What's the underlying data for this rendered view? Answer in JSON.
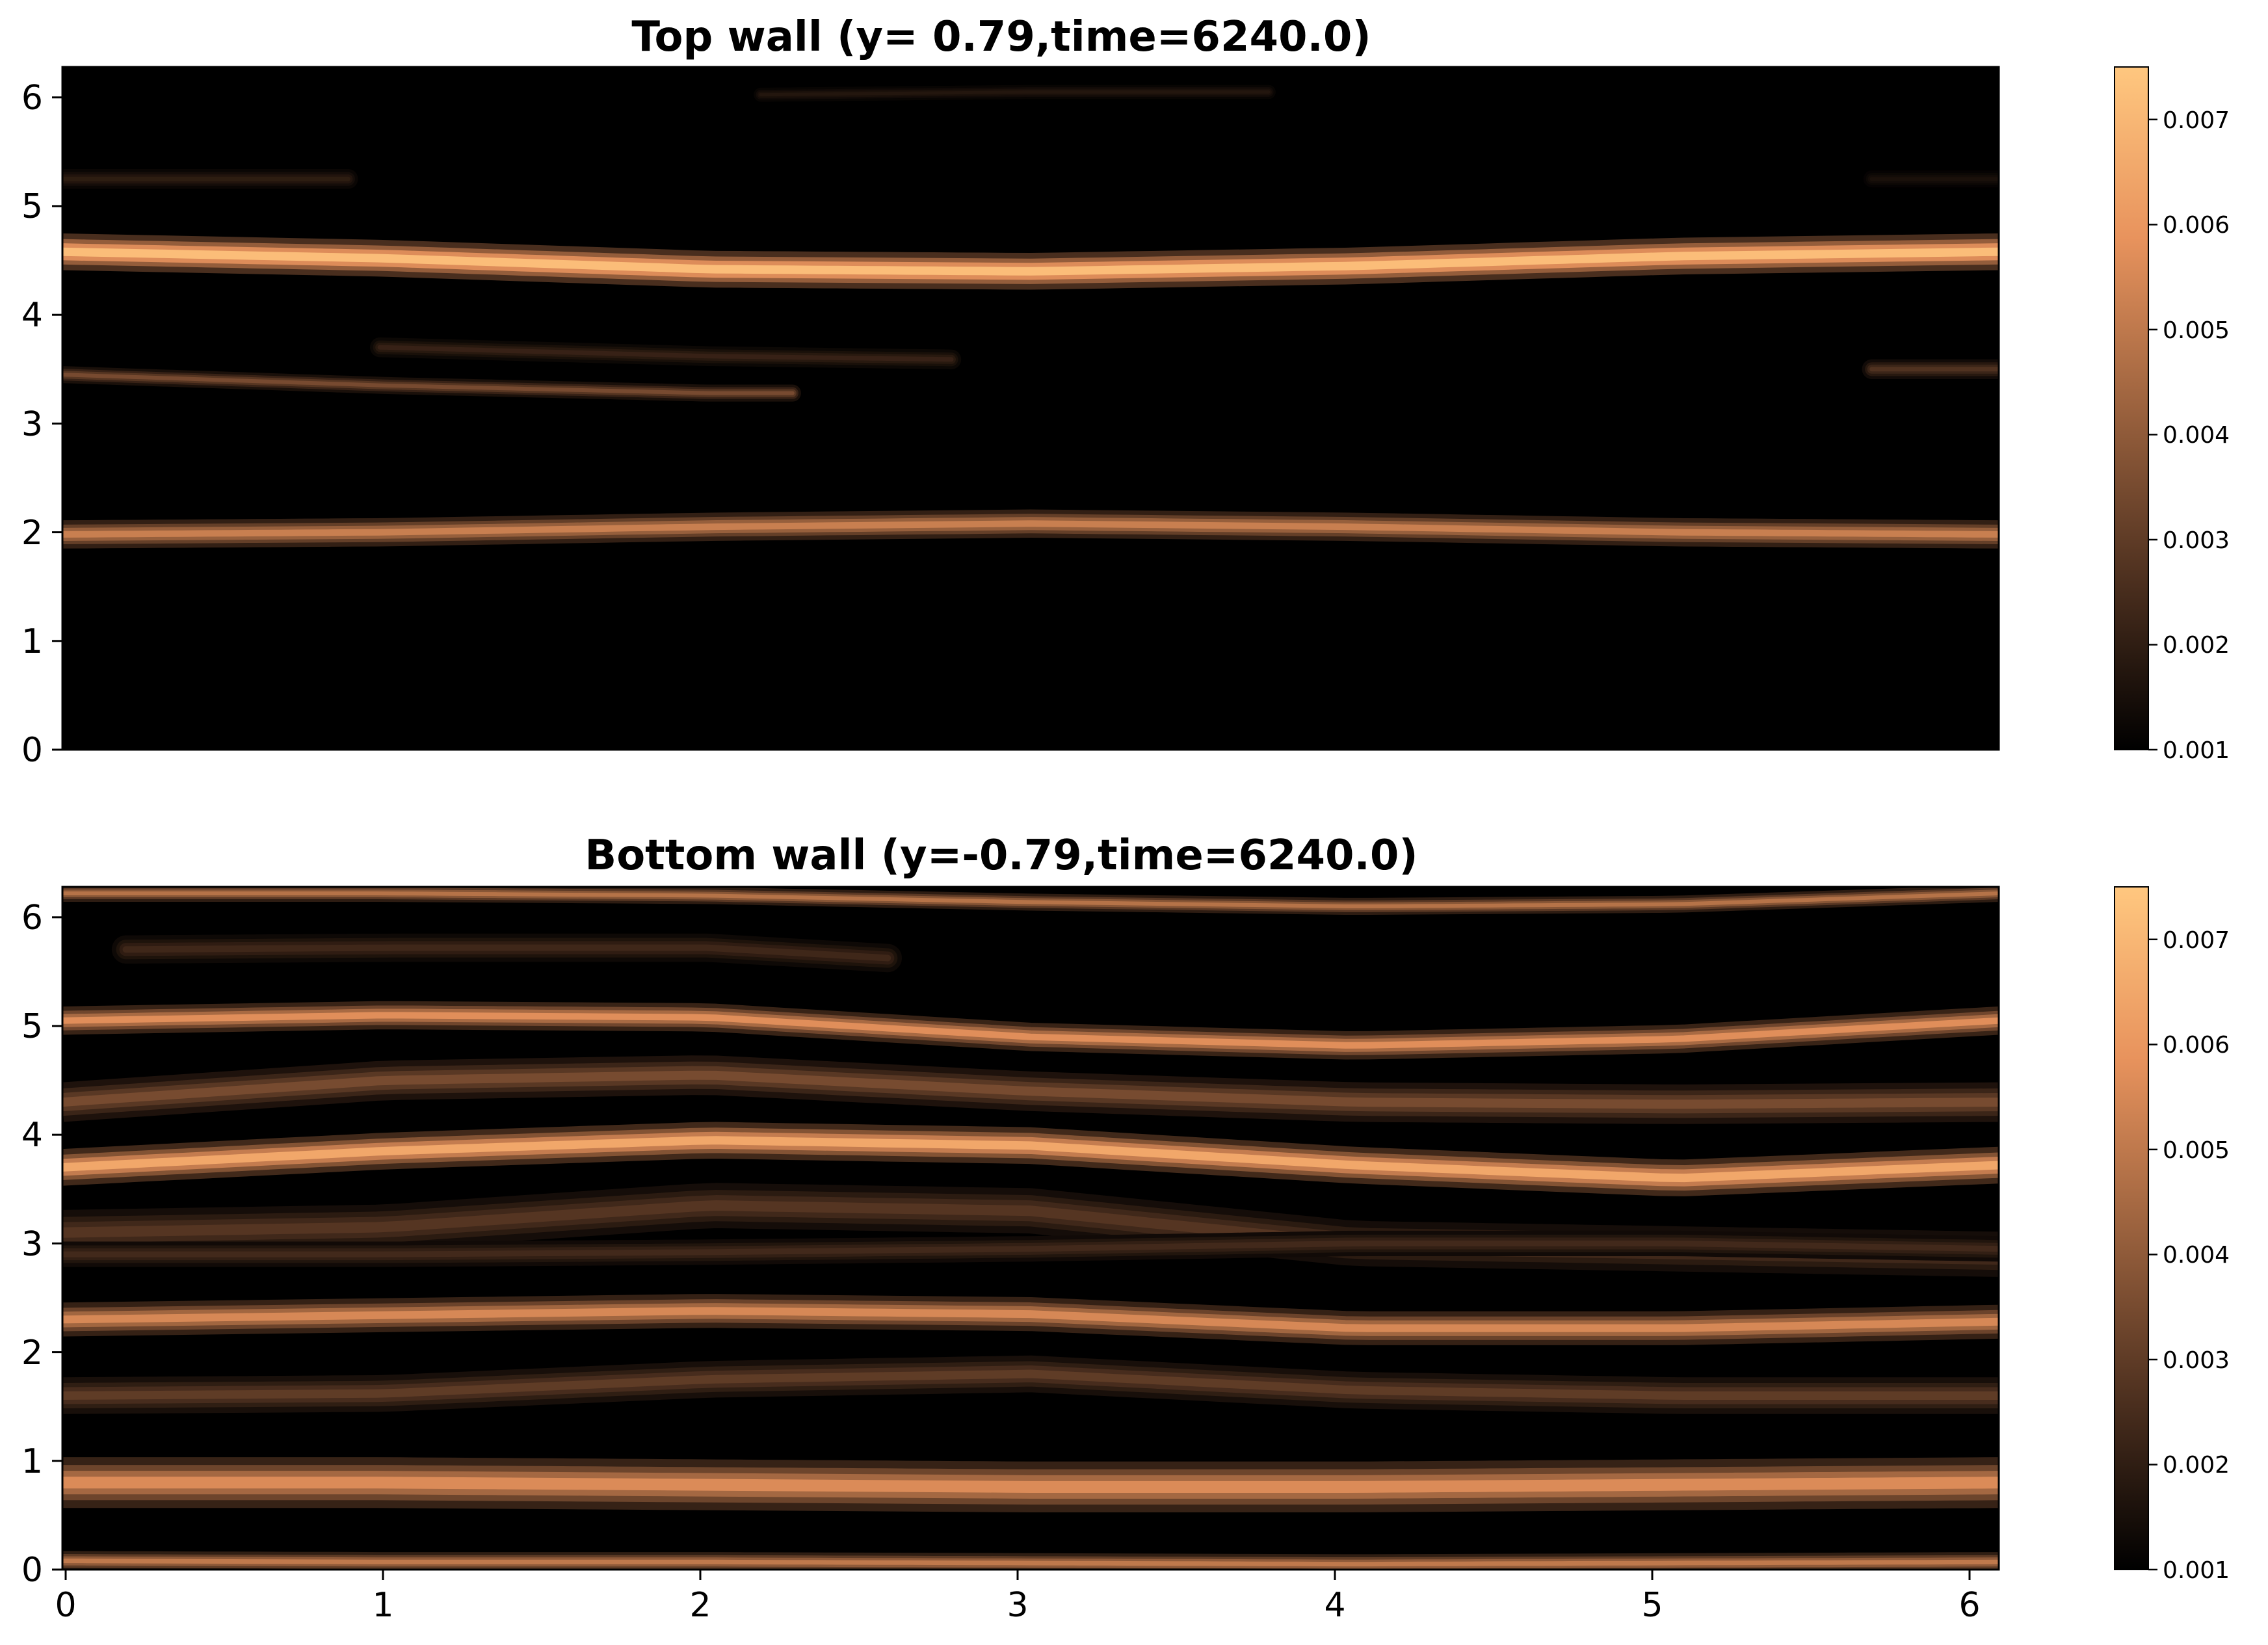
{
  "chart_data": [
    {
      "type": "heatmap",
      "title": "Top wall (y= 0.79,time=6240.0)",
      "xlabel": "",
      "ylabel": "",
      "xlim": [
        0,
        6.1
      ],
      "ylim": [
        0,
        6.28
      ],
      "x_ticks": [
        "0",
        "1",
        "2",
        "3",
        "4",
        "5",
        "6"
      ],
      "y_ticks": [
        "0",
        "1",
        "2",
        "3",
        "4",
        "5",
        "6"
      ],
      "show_x_ticks": false,
      "colormap": "copper",
      "colormap_colors": [
        "#000000",
        "#ffc77f"
      ],
      "colorbar": {
        "range": [
          0.001,
          0.0075
        ],
        "ticks": [
          "0.001",
          "0.002",
          "0.003",
          "0.004",
          "0.005",
          "0.006",
          "0.007"
        ]
      },
      "background_value": 0.001,
      "streaks": [
        {
          "z": [
            4.58,
            4.52,
            4.42,
            4.4,
            4.45,
            4.54,
            4.58
          ],
          "amp": 0.0072,
          "width": 0.13
        },
        {
          "z": [
            1.98,
            2.0,
            2.05,
            2.08,
            2.05,
            2.0,
            1.98
          ],
          "amp": 0.0052,
          "width": 0.1
        },
        {
          "z": [
            3.45,
            3.35,
            3.28,
            3.28,
            3.28,
            3.3,
            3.3
          ],
          "amp": 0.0036,
          "width": 0.06,
          "x_range": [
            0,
            2.3
          ]
        },
        {
          "z": [
            3.75,
            3.7,
            3.62,
            3.58,
            3.58,
            3.58,
            3.58
          ],
          "amp": 0.0022,
          "width": 0.07,
          "x_range": [
            1.0,
            2.8
          ]
        },
        {
          "z": [
            3.5,
            3.5,
            3.5,
            3.5,
            3.5,
            3.5,
            3.5
          ],
          "amp": 0.0028,
          "width": 0.07,
          "x_range": [
            5.7,
            6.1
          ]
        },
        {
          "z": [
            5.25,
            5.25,
            5.25,
            5.25,
            5.25,
            5.25,
            5.25
          ],
          "amp": 0.002,
          "width": 0.07,
          "x_range": [
            0,
            0.9
          ]
        },
        {
          "z": [
            6.0,
            6.0,
            6.02,
            6.05,
            6.05,
            6.05,
            6.05
          ],
          "amp": 0.0018,
          "width": 0.05,
          "x_range": [
            2.2,
            3.8
          ]
        },
        {
          "z": [
            5.25,
            5.25,
            5.25,
            5.25,
            5.25,
            5.25,
            5.25
          ],
          "amp": 0.0016,
          "width": 0.06,
          "x_range": [
            5.7,
            6.1
          ]
        }
      ]
    },
    {
      "type": "heatmap",
      "title": "Bottom wall (y=-0.79,time=6240.0)",
      "xlabel": "",
      "ylabel": "",
      "xlim": [
        0,
        6.1
      ],
      "ylim": [
        0,
        6.28
      ],
      "x_ticks": [
        "0",
        "1",
        "2",
        "3",
        "4",
        "5",
        "6"
      ],
      "y_ticks": [
        "0",
        "1",
        "2",
        "3",
        "4",
        "5",
        "6"
      ],
      "show_x_ticks": true,
      "colormap": "copper",
      "colormap_colors": [
        "#000000",
        "#ffc77f"
      ],
      "colorbar": {
        "range": [
          0.001,
          0.0075
        ],
        "ticks": [
          "0.001",
          "0.002",
          "0.003",
          "0.004",
          "0.005",
          "0.006",
          "0.007"
        ]
      },
      "background_value": 0.001,
      "streaks": [
        {
          "z": [
            0.8,
            0.8,
            0.78,
            0.76,
            0.76,
            0.78,
            0.8
          ],
          "amp": 0.0056,
          "width": 0.18
        },
        {
          "z": [
            0.08,
            0.07,
            0.07,
            0.06,
            0.05,
            0.06,
            0.07
          ],
          "amp": 0.005,
          "width": 0.07
        },
        {
          "z": [
            2.3,
            2.34,
            2.38,
            2.35,
            2.22,
            2.22,
            2.28
          ],
          "amp": 0.0055,
          "width": 0.12
        },
        {
          "z": [
            3.7,
            3.85,
            3.95,
            3.9,
            3.72,
            3.6,
            3.72
          ],
          "amp": 0.0065,
          "width": 0.13
        },
        {
          "z": [
            5.05,
            5.1,
            5.08,
            4.9,
            4.82,
            4.88,
            5.05
          ],
          "amp": 0.0057,
          "width": 0.1
        },
        {
          "z": [
            6.22,
            6.22,
            6.2,
            6.14,
            6.1,
            6.12,
            6.22
          ],
          "amp": 0.0048,
          "width": 0.06
        },
        {
          "z": [
            4.3,
            4.5,
            4.55,
            4.4,
            4.3,
            4.28,
            4.3
          ],
          "amp": 0.0035,
          "width": 0.14
        },
        {
          "z": [
            3.1,
            3.15,
            3.35,
            3.3,
            3.0,
            2.95,
            2.9
          ],
          "amp": 0.0028,
          "width": 0.16
        },
        {
          "z": [
            1.6,
            1.62,
            1.75,
            1.8,
            1.65,
            1.6,
            1.6
          ],
          "amp": 0.003,
          "width": 0.13
        },
        {
          "z": [
            2.9,
            2.9,
            2.92,
            2.95,
            3.0,
            3.0,
            2.95
          ],
          "amp": 0.0024,
          "width": 0.09
        },
        {
          "z": [
            5.7,
            5.72,
            5.72,
            5.55,
            5.5,
            5.5,
            5.5
          ],
          "amp": 0.0024,
          "width": 0.1,
          "x_range": [
            0.2,
            2.6
          ]
        }
      ]
    }
  ]
}
